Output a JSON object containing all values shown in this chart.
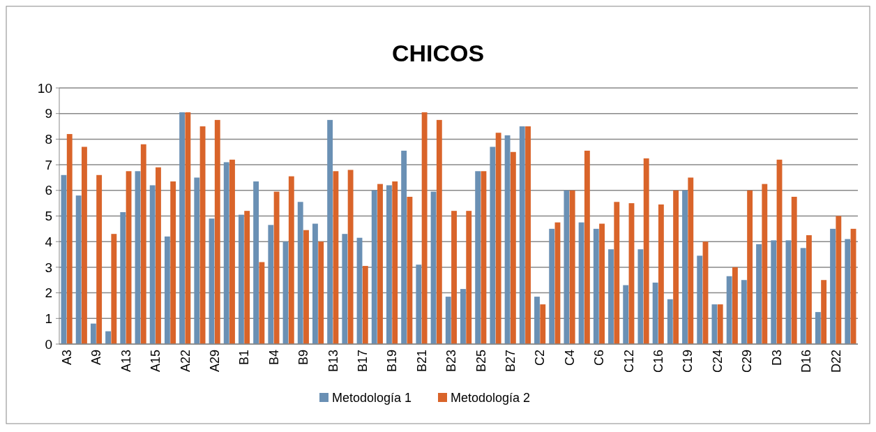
{
  "chart_data": {
    "type": "bar",
    "title": "CHICOS",
    "categories": [
      "A3",
      null,
      "A9",
      null,
      "A13",
      null,
      "A15",
      null,
      "A22",
      null,
      "A29",
      null,
      "B1",
      null,
      "B4",
      null,
      "B9",
      null,
      "B13",
      null,
      "B17",
      null,
      "B19",
      null,
      "B21",
      null,
      "B23",
      null,
      "B25",
      null,
      "B27",
      null,
      "C2",
      null,
      "C4",
      null,
      "C6",
      null,
      "C12",
      null,
      "C16",
      null,
      "C19",
      null,
      "C24",
      null,
      "C29",
      null,
      "D3",
      null,
      "D16",
      null,
      "D22",
      null
    ],
    "series": [
      {
        "name": "Metodología 1",
        "color": "#6a90b4",
        "values": [
          6.6,
          5.8,
          0.8,
          0.5,
          5.15,
          6.75,
          6.2,
          4.2,
          9.05,
          6.5,
          4.9,
          7.1,
          5.05,
          6.35,
          4.65,
          4.0,
          5.55,
          4.7,
          8.75,
          4.3,
          4.15,
          6.0,
          6.2,
          7.55,
          3.1,
          5.95,
          1.85,
          2.15,
          6.75,
          7.7,
          8.15,
          8.5,
          1.85,
          4.5,
          6.0,
          4.75,
          4.5,
          3.7,
          2.3,
          3.7,
          2.4,
          1.75,
          6.0,
          3.45,
          1.55,
          2.65,
          2.5,
          3.9,
          4.05,
          4.05,
          3.75,
          1.25,
          4.5,
          4.1
        ]
      },
      {
        "name": "Metodología 2",
        "color": "#d9642a",
        "values": [
          8.2,
          7.7,
          6.6,
          4.3,
          6.75,
          7.8,
          6.9,
          6.35,
          9.05,
          8.5,
          8.75,
          7.2,
          5.2,
          3.2,
          5.95,
          6.55,
          4.45,
          4.0,
          6.75,
          6.8,
          3.05,
          6.25,
          6.35,
          5.75,
          9.05,
          8.75,
          5.2,
          5.2,
          6.75,
          8.25,
          7.5,
          8.5,
          1.55,
          4.75,
          6.0,
          7.55,
          4.7,
          5.55,
          5.5,
          7.25,
          5.45,
          6.0,
          6.5,
          4.0,
          1.55,
          3.0,
          6.0,
          6.25,
          7.2,
          5.75,
          4.25,
          2.5,
          5.0,
          4.5
        ]
      }
    ],
    "ylim": [
      0,
      10
    ],
    "yticks": [
      0,
      1,
      2,
      3,
      4,
      5,
      6,
      7,
      8,
      9,
      10
    ],
    "grid": "y",
    "legend": "bottom"
  }
}
